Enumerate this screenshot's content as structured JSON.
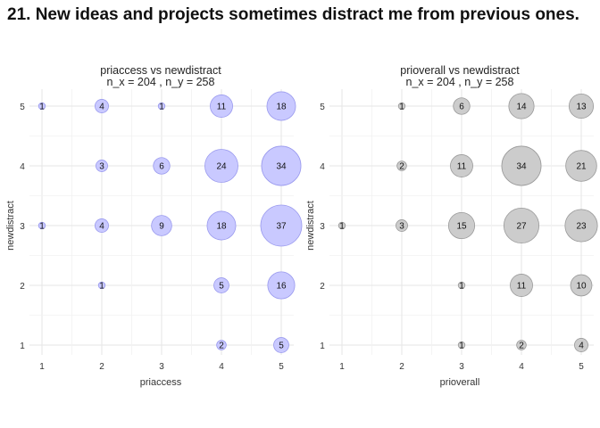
{
  "title": "21. New ideas and projects sometimes distract me from previous ones.",
  "chart_data": [
    {
      "type": "bubble",
      "title": "priaccess vs newdistract",
      "subtitle": "n_x = 204 , n_y = 258",
      "xlabel": "priaccess",
      "ylabel": "newdistract",
      "x_ticks": [
        "1",
        "2",
        "3",
        "4",
        "5"
      ],
      "y_ticks": [
        "1",
        "2",
        "3",
        "4",
        "5"
      ],
      "fill_color": "#c9c9ff",
      "stroke_color": "#9999ee",
      "points": [
        {
          "x": 1,
          "y": 5,
          "count": 1
        },
        {
          "x": 2,
          "y": 5,
          "count": 4
        },
        {
          "x": 3,
          "y": 5,
          "count": 1
        },
        {
          "x": 4,
          "y": 5,
          "count": 11
        },
        {
          "x": 5,
          "y": 5,
          "count": 18
        },
        {
          "x": 2,
          "y": 4,
          "count": 3
        },
        {
          "x": 3,
          "y": 4,
          "count": 6
        },
        {
          "x": 4,
          "y": 4,
          "count": 24
        },
        {
          "x": 5,
          "y": 4,
          "count": 34
        },
        {
          "x": 1,
          "y": 3,
          "count": 1
        },
        {
          "x": 2,
          "y": 3,
          "count": 4
        },
        {
          "x": 3,
          "y": 3,
          "count": 9
        },
        {
          "x": 4,
          "y": 3,
          "count": 18
        },
        {
          "x": 5,
          "y": 3,
          "count": 37
        },
        {
          "x": 2,
          "y": 2,
          "count": 1
        },
        {
          "x": 4,
          "y": 2,
          "count": 5
        },
        {
          "x": 5,
          "y": 2,
          "count": 16
        },
        {
          "x": 4,
          "y": 1,
          "count": 2
        },
        {
          "x": 5,
          "y": 1,
          "count": 5
        }
      ]
    },
    {
      "type": "bubble",
      "title": "prioverall vs newdistract",
      "subtitle": "n_x = 204 , n_y = 258",
      "xlabel": "prioverall",
      "ylabel": "newdistract",
      "x_ticks": [
        "1",
        "2",
        "3",
        "4",
        "5"
      ],
      "y_ticks": [
        "1",
        "2",
        "3",
        "4",
        "5"
      ],
      "fill_color": "#cccccc",
      "stroke_color": "#999999",
      "points": [
        {
          "x": 2,
          "y": 5,
          "count": 1
        },
        {
          "x": 3,
          "y": 5,
          "count": 6
        },
        {
          "x": 4,
          "y": 5,
          "count": 14
        },
        {
          "x": 5,
          "y": 5,
          "count": 13
        },
        {
          "x": 2,
          "y": 4,
          "count": 2
        },
        {
          "x": 3,
          "y": 4,
          "count": 11
        },
        {
          "x": 4,
          "y": 4,
          "count": 34
        },
        {
          "x": 5,
          "y": 4,
          "count": 21
        },
        {
          "x": 1,
          "y": 3,
          "count": 1
        },
        {
          "x": 2,
          "y": 3,
          "count": 3
        },
        {
          "x": 3,
          "y": 3,
          "count": 15
        },
        {
          "x": 4,
          "y": 3,
          "count": 27
        },
        {
          "x": 5,
          "y": 3,
          "count": 23
        },
        {
          "x": 3,
          "y": 2,
          "count": 1
        },
        {
          "x": 4,
          "y": 2,
          "count": 11
        },
        {
          "x": 5,
          "y": 2,
          "count": 10
        },
        {
          "x": 3,
          "y": 1,
          "count": 1
        },
        {
          "x": 4,
          "y": 1,
          "count": 2
        },
        {
          "x": 5,
          "y": 1,
          "count": 4
        }
      ]
    }
  ]
}
